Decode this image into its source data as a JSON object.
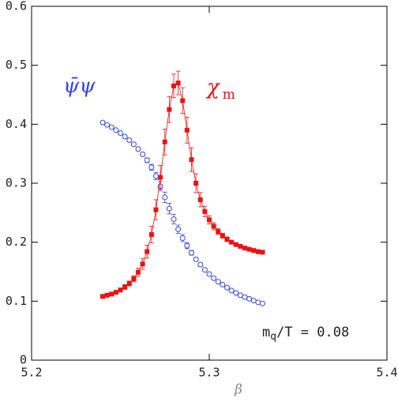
{
  "chart_data": {
    "type": "scatter",
    "xlabel": "β",
    "x": [
      5.24,
      5.2425,
      5.245,
      5.2475,
      5.25,
      5.2525,
      5.255,
      5.2575,
      5.26,
      5.2625,
      5.265,
      5.2675,
      5.27,
      5.2725,
      5.275,
      5.2775,
      5.28,
      5.2825,
      5.285,
      5.2875,
      5.29,
      5.2925,
      5.295,
      5.2975,
      5.3,
      5.3025,
      5.305,
      5.3075,
      5.31,
      5.3125,
      5.315,
      5.3175,
      5.32,
      5.3225,
      5.325,
      5.3275,
      5.33
    ],
    "series": [
      {
        "name": "ψ̄ψ",
        "color": "#3344ee",
        "marker": "circle",
        "connect": false,
        "values": [
          0.403,
          0.399,
          0.395,
          0.39,
          0.385,
          0.379,
          0.373,
          0.366,
          0.358,
          0.349,
          0.339,
          0.327,
          0.312,
          0.295,
          0.276,
          0.257,
          0.239,
          0.222,
          0.207,
          0.194,
          0.182,
          0.171,
          0.162,
          0.153,
          0.146,
          0.139,
          0.133,
          0.128,
          0.123,
          0.118,
          0.114,
          0.11,
          0.107,
          0.104,
          0.101,
          0.098,
          0.096
        ],
        "errors": [
          0.001,
          0.001,
          0.001,
          0.001,
          0.001,
          0.002,
          0.002,
          0.002,
          0.003,
          0.003,
          0.004,
          0.005,
          0.006,
          0.008,
          0.009,
          0.009,
          0.008,
          0.007,
          0.006,
          0.005,
          0.004,
          0.003,
          0.003,
          0.002,
          0.002,
          0.002,
          0.002,
          0.001,
          0.001,
          0.001,
          0.001,
          0.001,
          0.001,
          0.001,
          0.001,
          0.001,
          0.001
        ]
      },
      {
        "name": "χ",
        "name_sub": "m",
        "color": "#ee1111",
        "marker": "square",
        "connect": true,
        "values": [
          0.108,
          0.11,
          0.112,
          0.115,
          0.119,
          0.124,
          0.13,
          0.138,
          0.149,
          0.163,
          0.184,
          0.213,
          0.255,
          0.31,
          0.37,
          0.425,
          0.465,
          0.47,
          0.44,
          0.39,
          0.34,
          0.3,
          0.272,
          0.252,
          0.238,
          0.227,
          0.218,
          0.211,
          0.205,
          0.2,
          0.196,
          0.193,
          0.19,
          0.188,
          0.186,
          0.184,
          0.183
        ],
        "errors": [
          0.002,
          0.002,
          0.002,
          0.003,
          0.003,
          0.004,
          0.004,
          0.005,
          0.007,
          0.009,
          0.011,
          0.014,
          0.017,
          0.02,
          0.022,
          0.022,
          0.02,
          0.02,
          0.022,
          0.022,
          0.02,
          0.016,
          0.012,
          0.009,
          0.007,
          0.006,
          0.005,
          0.004,
          0.004,
          0.003,
          0.003,
          0.003,
          0.003,
          0.002,
          0.002,
          0.002,
          0.002
        ]
      }
    ],
    "annotation": {
      "text": "m",
      "sub": "q",
      "rest": "/T = 0.08"
    },
    "xlim": [
      5.2,
      5.4
    ],
    "xticks": [
      5.2,
      5.3,
      5.4
    ],
    "ylim": [
      0,
      0.6
    ],
    "yticks": [
      0,
      0.1,
      0.2,
      0.3,
      0.4,
      0.5,
      0.6
    ]
  }
}
